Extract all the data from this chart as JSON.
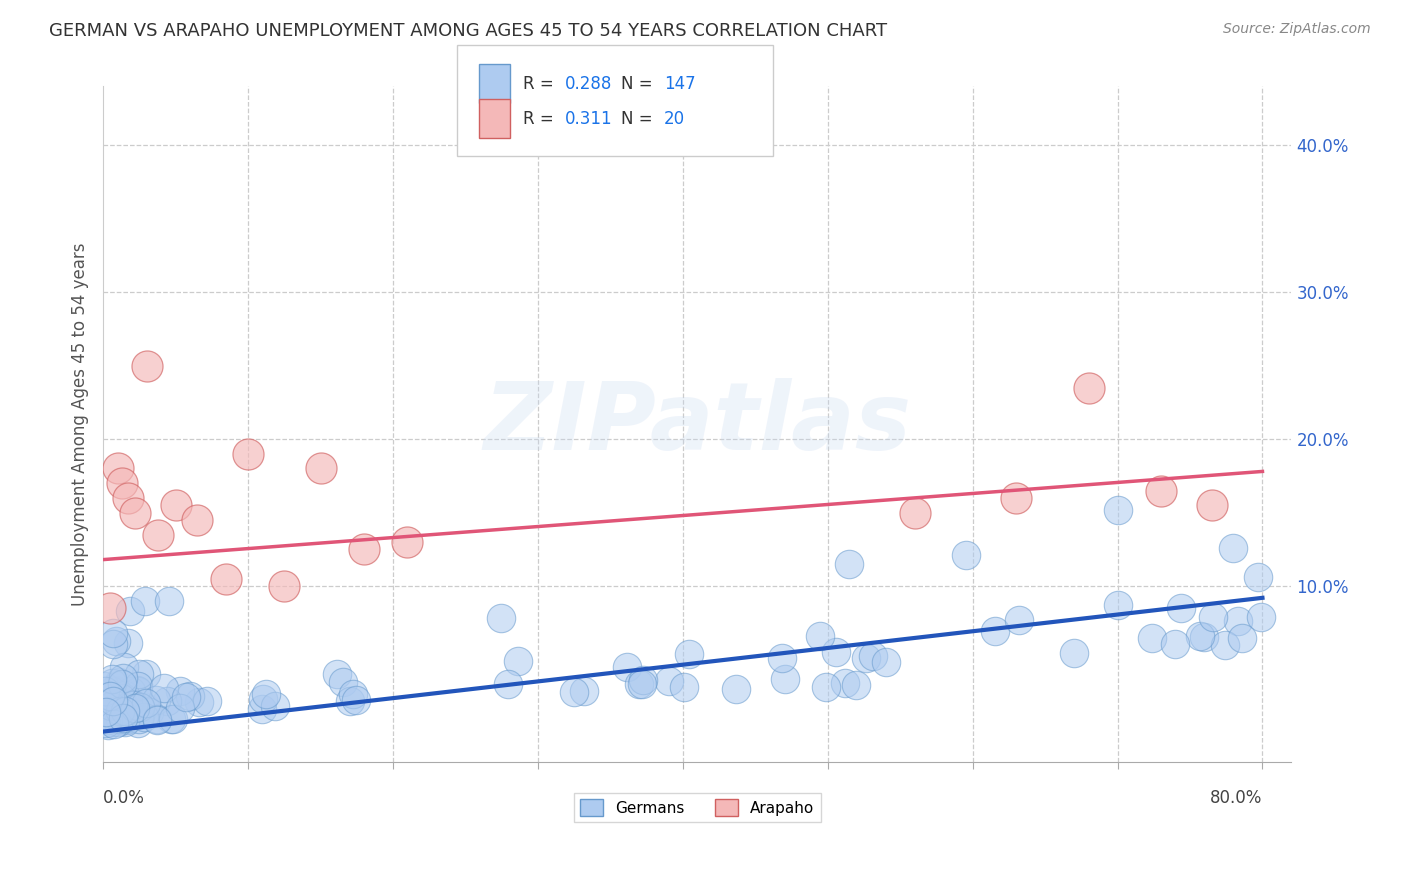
{
  "title": "GERMAN VS ARAPAHO UNEMPLOYMENT AMONG AGES 45 TO 54 YEARS CORRELATION CHART",
  "source": "Source: ZipAtlas.com",
  "ylabel": "Unemployment Among Ages 45 to 54 years",
  "xlim": [
    0.0,
    0.82
  ],
  "ylim": [
    -0.02,
    0.44
  ],
  "ytick_positions": [
    0.1,
    0.2,
    0.3,
    0.4
  ],
  "ytick_labels": [
    "10.0%",
    "20.0%",
    "30.0%",
    "40.0%"
  ],
  "german_color": "#aecbf0",
  "german_edge_color": "#6699cc",
  "arapaho_color": "#f4b8b8",
  "arapaho_edge_color": "#d06060",
  "german_line_color": "#2255bb",
  "arapaho_line_color": "#e05577",
  "german_R": "0.288",
  "german_N": "147",
  "arapaho_R": "0.311",
  "arapaho_N": "20",
  "watermark_text": "ZIPatlas",
  "legend_text_color": "#333333",
  "legend_value_color": "#1a73e8",
  "german_line_start_y": 0.001,
  "german_line_end_y": 0.092,
  "arapaho_line_start_y": 0.118,
  "arapaho_line_end_y": 0.178
}
